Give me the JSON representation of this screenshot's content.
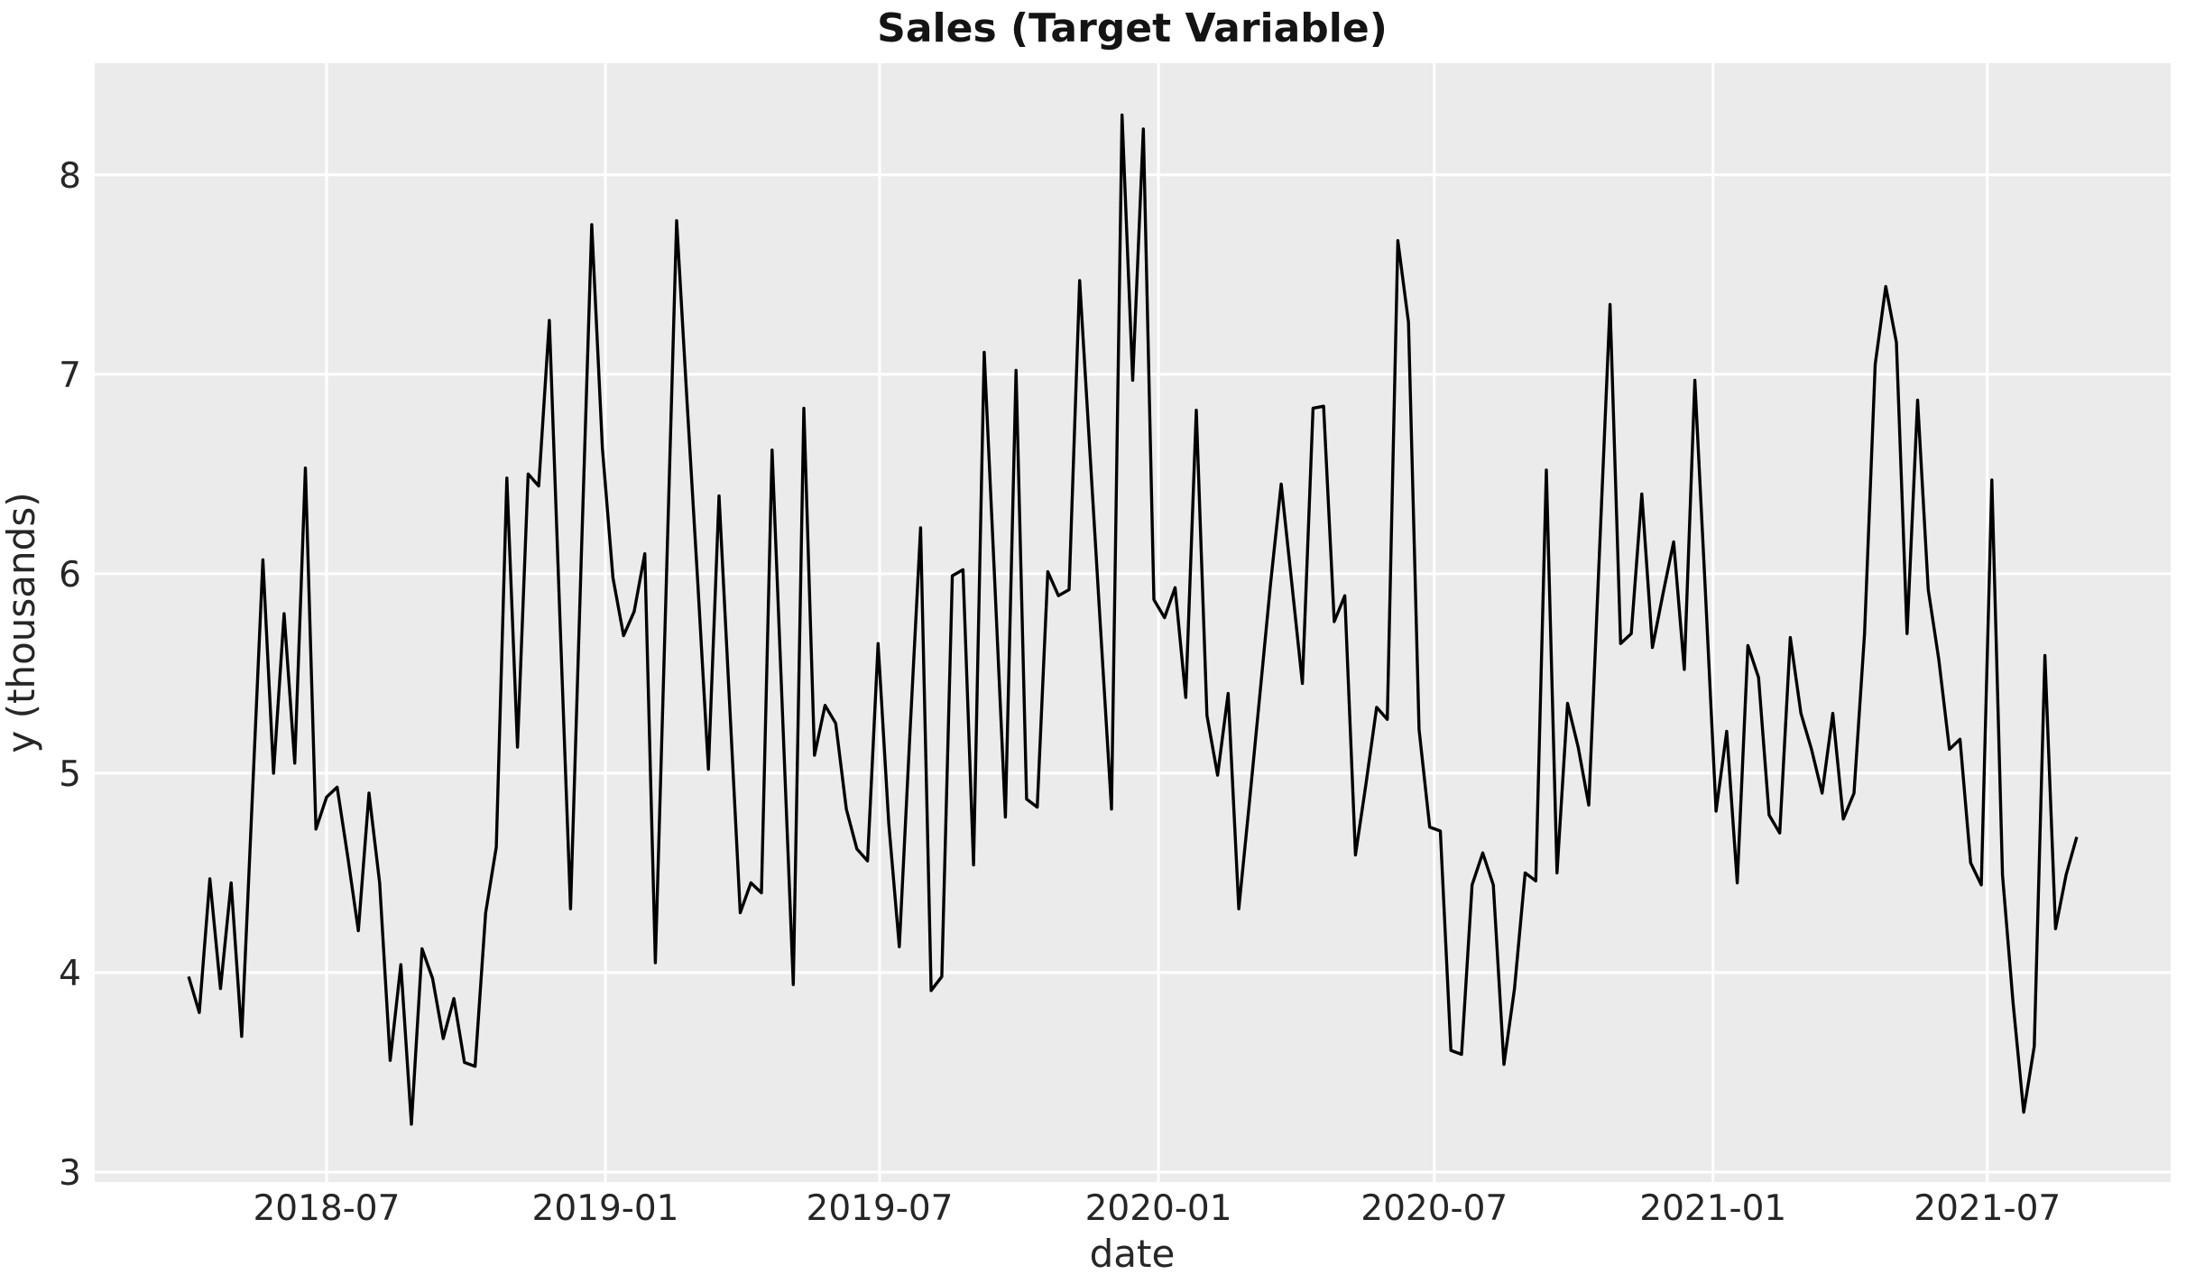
{
  "figure": {
    "title": "Sales (Target Variable)"
  },
  "chart_data": {
    "type": "line",
    "title": "Sales (Target Variable)",
    "xlabel": "date",
    "ylabel": "y (thousands)",
    "legend": "none",
    "grid": true,
    "frequency": "weekly",
    "plot_bg_color": "#ebebeb",
    "grid_color": "#ffffff",
    "line_color": "#000000",
    "text_color": "#262626",
    "ylim": [
      2.95,
      8.56
    ],
    "xlim": [
      "2018-01-29",
      "2021-10-30"
    ],
    "yticks": [
      3,
      4,
      5,
      6,
      7,
      8
    ],
    "ytick_labels": [
      "3",
      "4",
      "5",
      "6",
      "7",
      "8"
    ],
    "xticks": [
      "2018-07-01",
      "2019-01-01",
      "2019-07-01",
      "2020-01-01",
      "2020-07-01",
      "2021-01-01",
      "2021-07-01"
    ],
    "xtick_labels": [
      "2018-07",
      "2019-01",
      "2019-07",
      "2020-01",
      "2020-07",
      "2021-01",
      "2021-07"
    ],
    "dates": [
      "2018-04-01",
      "2018-04-08",
      "2018-04-15",
      "2018-04-22",
      "2018-04-29",
      "2018-05-06",
      "2018-05-13",
      "2018-05-20",
      "2018-05-27",
      "2018-06-03",
      "2018-06-10",
      "2018-06-17",
      "2018-06-24",
      "2018-07-01",
      "2018-07-08",
      "2018-07-15",
      "2018-07-22",
      "2018-07-29",
      "2018-08-05",
      "2018-08-12",
      "2018-08-19",
      "2018-08-26",
      "2018-09-02",
      "2018-09-09",
      "2018-09-16",
      "2018-09-23",
      "2018-09-30",
      "2018-10-07",
      "2018-10-14",
      "2018-10-21",
      "2018-10-28",
      "2018-11-04",
      "2018-11-11",
      "2018-11-18",
      "2018-11-25",
      "2018-12-02",
      "2018-12-09",
      "2018-12-16",
      "2018-12-23",
      "2018-12-30",
      "2019-01-06",
      "2019-01-13",
      "2019-01-20",
      "2019-01-27",
      "2019-02-03",
      "2019-02-10",
      "2019-02-17",
      "2019-02-24",
      "2019-03-03",
      "2019-03-10",
      "2019-03-17",
      "2019-03-24",
      "2019-03-31",
      "2019-04-07",
      "2019-04-14",
      "2019-04-21",
      "2019-04-28",
      "2019-05-05",
      "2019-05-12",
      "2019-05-19",
      "2019-05-26",
      "2019-06-02",
      "2019-06-09",
      "2019-06-16",
      "2019-06-23",
      "2019-06-30",
      "2019-07-07",
      "2019-07-14",
      "2019-07-21",
      "2019-07-28",
      "2019-08-04",
      "2019-08-11",
      "2019-08-18",
      "2019-08-25",
      "2019-09-01",
      "2019-09-08",
      "2019-09-15",
      "2019-09-22",
      "2019-09-29",
      "2019-10-06",
      "2019-10-13",
      "2019-10-20",
      "2019-10-27",
      "2019-11-03",
      "2019-11-10",
      "2019-11-17",
      "2019-11-24",
      "2019-12-01",
      "2019-12-08",
      "2019-12-15",
      "2019-12-22",
      "2019-12-29",
      "2020-01-05",
      "2020-01-12",
      "2020-01-19",
      "2020-01-26",
      "2020-02-02",
      "2020-02-09",
      "2020-02-16",
      "2020-02-23",
      "2020-03-01",
      "2020-03-08",
      "2020-03-15",
      "2020-03-22",
      "2020-03-29",
      "2020-04-05",
      "2020-04-12",
      "2020-04-19",
      "2020-04-26",
      "2020-05-03",
      "2020-05-10",
      "2020-05-17",
      "2020-05-24",
      "2020-05-31",
      "2020-06-07",
      "2020-06-14",
      "2020-06-21",
      "2020-06-28",
      "2020-07-05",
      "2020-07-12",
      "2020-07-19",
      "2020-07-26",
      "2020-08-02",
      "2020-08-09",
      "2020-08-16",
      "2020-08-23",
      "2020-08-30",
      "2020-09-06",
      "2020-09-13",
      "2020-09-20",
      "2020-09-27",
      "2020-10-04",
      "2020-10-11",
      "2020-10-18",
      "2020-10-25",
      "2020-11-01",
      "2020-11-08",
      "2020-11-15",
      "2020-11-22",
      "2020-11-29",
      "2020-12-06",
      "2020-12-13",
      "2020-12-20",
      "2020-12-27",
      "2021-01-03",
      "2021-01-10",
      "2021-01-17",
      "2021-01-24",
      "2021-01-31",
      "2021-02-07",
      "2021-02-14",
      "2021-02-21",
      "2021-02-28",
      "2021-03-07",
      "2021-03-14",
      "2021-03-21",
      "2021-03-28",
      "2021-04-04",
      "2021-04-11",
      "2021-04-18",
      "2021-04-25",
      "2021-05-02",
      "2021-05-09",
      "2021-05-16",
      "2021-05-23",
      "2021-05-30",
      "2021-06-06",
      "2021-06-13",
      "2021-06-20",
      "2021-06-27",
      "2021-07-04",
      "2021-07-11",
      "2021-07-18",
      "2021-07-25",
      "2021-08-01",
      "2021-08-08",
      "2021-08-15",
      "2021-08-22",
      "2021-08-29"
    ],
    "values": [
      3.98,
      3.8,
      4.47,
      3.92,
      4.45,
      3.68,
      4.88,
      6.07,
      5.0,
      5.8,
      5.05,
      6.53,
      4.72,
      4.88,
      4.93,
      4.58,
      4.21,
      4.9,
      4.45,
      3.56,
      4.04,
      3.24,
      4.12,
      3.97,
      3.67,
      3.87,
      3.55,
      3.53,
      4.3,
      4.63,
      6.48,
      5.13,
      6.5,
      6.44,
      7.27,
      5.78,
      4.32,
      6.05,
      7.75,
      6.63,
      5.98,
      5.69,
      5.81,
      6.1,
      4.05,
      5.9,
      7.77,
      6.85,
      5.95,
      5.02,
      6.39,
      5.35,
      4.3,
      4.45,
      4.4,
      6.62,
      5.28,
      3.94,
      6.83,
      5.09,
      5.34,
      5.25,
      4.82,
      4.62,
      4.56,
      5.65,
      4.75,
      4.13,
      5.2,
      6.23,
      3.91,
      3.98,
      5.99,
      6.02,
      4.54,
      7.11,
      5.95,
      4.78,
      7.02,
      4.87,
      4.83,
      6.01,
      5.89,
      5.92,
      7.47,
      6.58,
      5.7,
      4.82,
      8.3,
      6.97,
      8.23,
      5.87,
      5.78,
      5.93,
      5.38,
      6.82,
      5.29,
      4.99,
      5.4,
      4.32,
      4.85,
      5.4,
      5.95,
      6.45,
      5.95,
      5.45,
      6.83,
      6.84,
      5.76,
      5.89,
      4.59,
      4.95,
      5.33,
      5.27,
      7.67,
      7.26,
      5.22,
      4.73,
      4.71,
      3.61,
      3.59,
      4.44,
      4.6,
      4.44,
      3.54,
      3.92,
      4.5,
      4.46,
      6.52,
      4.5,
      5.35,
      5.13,
      4.84,
      6.1,
      7.35,
      5.65,
      5.7,
      6.4,
      5.63,
      5.9,
      6.16,
      5.52,
      6.97,
      5.9,
      4.81,
      5.21,
      4.45,
      5.64,
      5.48,
      4.79,
      4.7,
      5.68,
      5.3,
      5.12,
      4.9,
      5.3,
      4.77,
      4.9,
      5.7,
      7.05,
      7.44,
      7.16,
      5.7,
      6.87,
      5.92,
      5.57,
      5.12,
      5.17,
      4.55,
      4.44,
      6.47,
      4.49,
      3.85,
      3.3,
      3.63,
      5.59,
      4.22,
      4.49,
      4.68
    ]
  }
}
